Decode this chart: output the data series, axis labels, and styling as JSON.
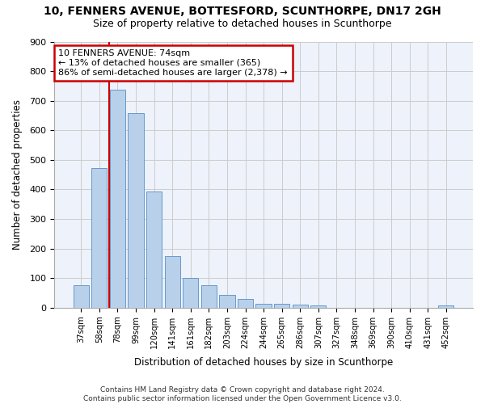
{
  "title": "10, FENNERS AVENUE, BOTTESFORD, SCUNTHORPE, DN17 2GH",
  "subtitle": "Size of property relative to detached houses in Scunthorpe",
  "xlabel": "Distribution of detached houses by size in Scunthorpe",
  "ylabel": "Number of detached properties",
  "categories": [
    "37sqm",
    "58sqm",
    "78sqm",
    "99sqm",
    "120sqm",
    "141sqm",
    "161sqm",
    "182sqm",
    "203sqm",
    "224sqm",
    "244sqm",
    "265sqm",
    "286sqm",
    "307sqm",
    "327sqm",
    "348sqm",
    "369sqm",
    "390sqm",
    "410sqm",
    "431sqm",
    "452sqm"
  ],
  "values": [
    75,
    472,
    738,
    657,
    393,
    175,
    100,
    77,
    42,
    30,
    13,
    13,
    10,
    7,
    0,
    0,
    0,
    0,
    0,
    0,
    8
  ],
  "bar_color": "#b8d0ea",
  "bar_edge_color": "#6699cc",
  "annotation_text": "10 FENNERS AVENUE: 74sqm\n← 13% of detached houses are smaller (365)\n86% of semi-detached houses are larger (2,378) →",
  "annotation_box_color": "#ffffff",
  "annotation_box_edge_color": "#cc0000",
  "vline_color": "#cc0000",
  "grid_color": "#cccccc",
  "plot_bg_color": "#eef2fb",
  "fig_bg_color": "#ffffff",
  "footer_text": "Contains HM Land Registry data © Crown copyright and database right 2024.\nContains public sector information licensed under the Open Government Licence v3.0.",
  "ylim": [
    0,
    900
  ],
  "yticks": [
    0,
    100,
    200,
    300,
    400,
    500,
    600,
    700,
    800,
    900
  ],
  "vline_x_pos": 1.55
}
